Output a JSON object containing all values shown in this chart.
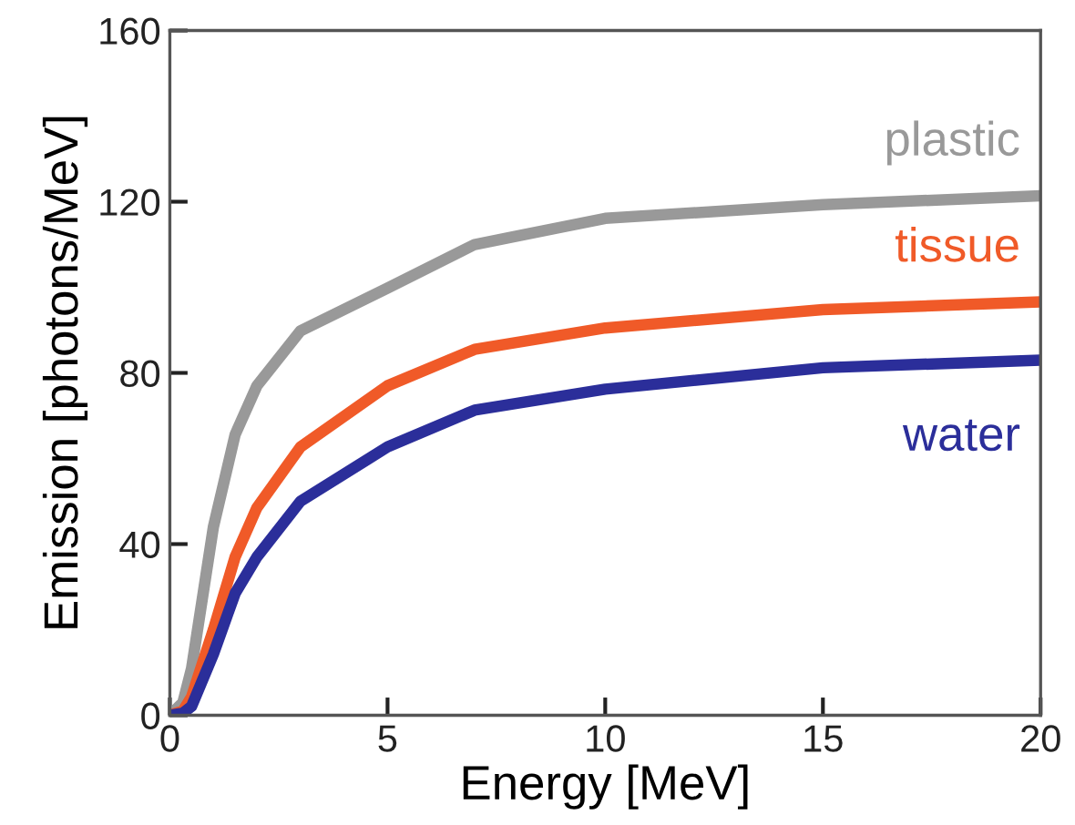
{
  "chart_data": {
    "type": "line",
    "xlabel": "Energy [MeV]",
    "ylabel": "Emission [photons/MeV]",
    "xlim": [
      0,
      20
    ],
    "ylim": [
      0,
      160
    ],
    "xticks": [
      0,
      5,
      10,
      15,
      20
    ],
    "yticks": [
      0,
      40,
      80,
      120,
      160
    ],
    "grid": false,
    "legend": false,
    "line_style": "solid",
    "marker": "none",
    "series": [
      {
        "name": "plastic",
        "color": "#999999",
        "x": [
          0,
          0.3,
          0.5,
          1,
          1.5,
          2,
          3,
          5,
          7,
          10,
          15,
          20
        ],
        "values": [
          0,
          3,
          11,
          44,
          65.6,
          77,
          89.8,
          99.8,
          110,
          116.1,
          119.3,
          121.4
        ]
      },
      {
        "name": "tissue",
        "color": "#f05a28",
        "x": [
          0,
          0.3,
          0.5,
          1,
          1.5,
          2,
          3,
          5,
          7,
          10,
          15,
          20
        ],
        "values": [
          0,
          1,
          4.3,
          20,
          37,
          48.5,
          62.7,
          77,
          85.5,
          90.5,
          94.8,
          96.6
        ]
      },
      {
        "name": "water",
        "color": "#2b2e9a",
        "x": [
          0,
          0.3,
          0.5,
          1,
          1.5,
          2,
          3,
          5,
          7,
          10,
          15,
          20
        ],
        "values": [
          0,
          0.5,
          2.1,
          14.3,
          28.5,
          37,
          50,
          62.7,
          71.3,
          76.2,
          81.2,
          83
        ]
      }
    ]
  }
}
